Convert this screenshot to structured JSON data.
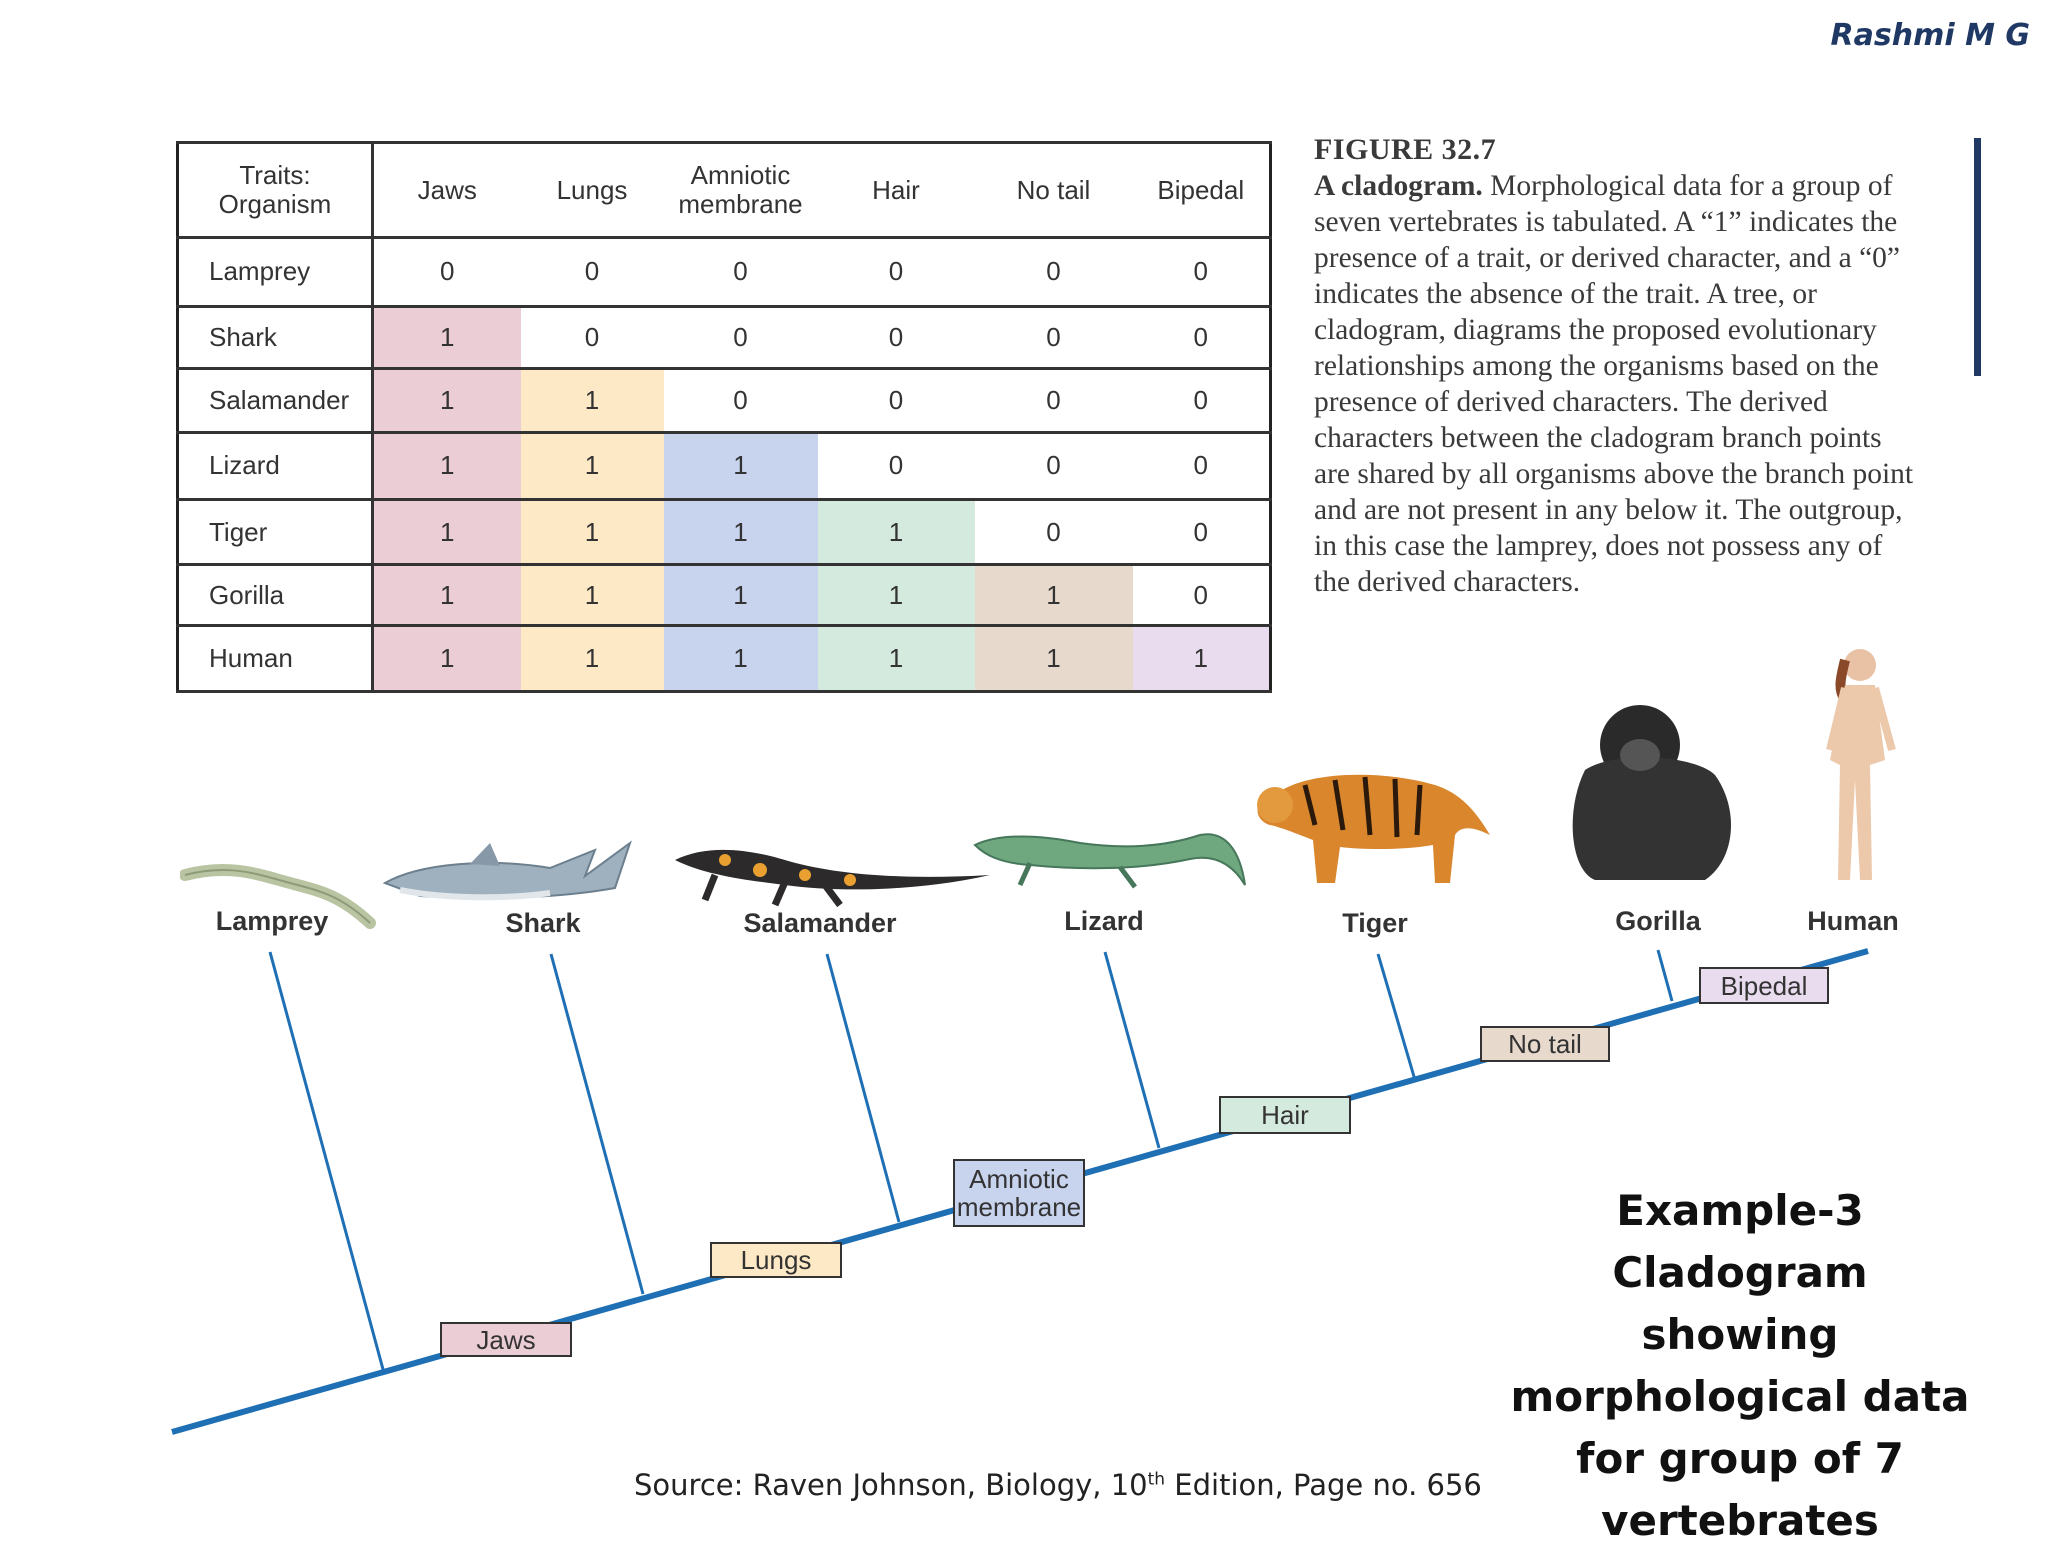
{
  "author": "Rashmi M G",
  "table": {
    "header_organism": "Traits:\nOrganism",
    "traits": [
      "Jaws",
      "Lungs",
      "Amniotic membrane",
      "Hair",
      "No tail",
      "Bipedal"
    ],
    "trait_colors": [
      "#ebcdd6",
      "#fde9c6",
      "#c8d3ee",
      "#d4eadf",
      "#e8d9cd",
      "#e8dcee"
    ],
    "rows": [
      {
        "organism": "Lamprey",
        "values": [
          "0",
          "0",
          "0",
          "0",
          "0",
          "0"
        ]
      },
      {
        "organism": "Shark",
        "values": [
          "1",
          "0",
          "0",
          "0",
          "0",
          "0"
        ]
      },
      {
        "organism": "Salamander",
        "values": [
          "1",
          "1",
          "0",
          "0",
          "0",
          "0"
        ]
      },
      {
        "organism": "Lizard",
        "values": [
          "1",
          "1",
          "1",
          "0",
          "0",
          "0"
        ]
      },
      {
        "organism": "Tiger",
        "values": [
          "1",
          "1",
          "1",
          "1",
          "0",
          "0"
        ]
      },
      {
        "organism": "Gorilla",
        "values": [
          "1",
          "1",
          "1",
          "1",
          "1",
          "0"
        ]
      },
      {
        "organism": "Human",
        "values": [
          "1",
          "1",
          "1",
          "1",
          "1",
          "1"
        ]
      }
    ]
  },
  "caption": {
    "figure": "FIGURE 32.7",
    "lead": "A cladogram.",
    "text": "Morphological data for a group of seven vertebrates is tabulated. A “1” indicates the presence of a trait, or derived character, and a “0” indicates the absence of the trait. A tree, or cladogram, diagrams the proposed evolutionary relationships among the organisms based on the presence of derived characters. The derived characters between the cladogram branch points are shared by all organisms above the branch point and are not present in any below it. The outgroup, in this case the lamprey, does not possess any of the derived characters."
  },
  "cladogram": {
    "organisms": [
      "Lamprey",
      "Shark",
      "Salamander",
      "Lizard",
      "Tiger",
      "Gorilla",
      "Human"
    ],
    "traits": [
      "Jaws",
      "Lungs",
      "Amniotic\nmembrane",
      "Hair",
      "No tail",
      "Bipedal"
    ],
    "line_color": "#1f6fb5"
  },
  "example": {
    "lines": [
      "Example-3",
      "Cladogram showing",
      "morphological data",
      "for group of 7",
      "vertebrates"
    ]
  },
  "source": {
    "prefix": "Source: Raven Johnson, Biology, 10",
    "sup": "th",
    "suffix": " Edition, Page no. 656"
  }
}
